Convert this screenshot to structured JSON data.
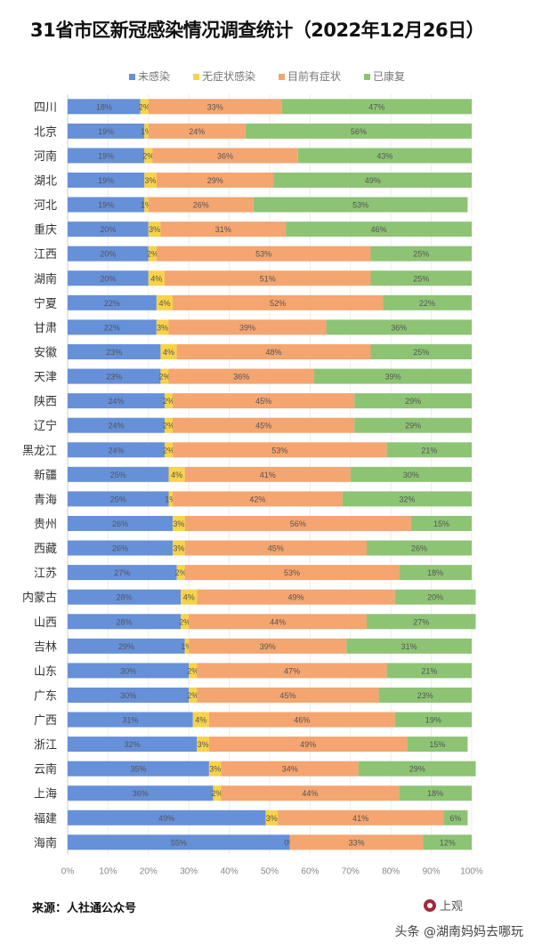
{
  "chart_data": {
    "type": "bar",
    "orientation": "horizontal",
    "stacked": true,
    "title": "31省市区新冠感染情况调查统计（2022年12月26日）",
    "categories": [
      "四川",
      "北京",
      "河南",
      "湖北",
      "河北",
      "重庆",
      "江西",
      "湖南",
      "宁夏",
      "甘肃",
      "安徽",
      "天津",
      "陕西",
      "辽宁",
      "黑龙江",
      "新疆",
      "青海",
      "贵州",
      "西藏",
      "江苏",
      "内蒙古",
      "山西",
      "吉林",
      "山东",
      "广东",
      "广西",
      "浙江",
      "云南",
      "上海",
      "福建",
      "海南"
    ],
    "series": [
      {
        "name": "未感染",
        "color": "#6690d8",
        "values": [
          18,
          19,
          19,
          19,
          19,
          20,
          20,
          20,
          22,
          22,
          23,
          23,
          24,
          24,
          24,
          25,
          25,
          26,
          26,
          27,
          28,
          28,
          29,
          30,
          30,
          31,
          32,
          35,
          36,
          49,
          55
        ]
      },
      {
        "name": "无症状感染",
        "color": "#f7d24a",
        "values": [
          2,
          1,
          2,
          3,
          1,
          3,
          2,
          4,
          4,
          3,
          4,
          2,
          2,
          2,
          2,
          4,
          1,
          3,
          3,
          2,
          4,
          2,
          1,
          2,
          2,
          4,
          3,
          3,
          2,
          3,
          0
        ]
      },
      {
        "name": "目前有症状",
        "color": "#f4a570",
        "values": [
          33,
          24,
          36,
          29,
          26,
          31,
          53,
          51,
          52,
          39,
          48,
          36,
          45,
          45,
          53,
          41,
          42,
          56,
          45,
          53,
          49,
          44,
          39,
          47,
          45,
          46,
          49,
          34,
          44,
          41,
          33
        ]
      },
      {
        "name": "已康复",
        "color": "#8dc474",
        "values": [
          47,
          56,
          43,
          49,
          53,
          46,
          25,
          25,
          22,
          36,
          25,
          39,
          29,
          29,
          21,
          30,
          32,
          15,
          26,
          18,
          20,
          27,
          31,
          21,
          23,
          19,
          15,
          29,
          18,
          6,
          12
        ]
      }
    ],
    "xlim": [
      0,
      100
    ],
    "x_ticks": [
      "0%",
      "10%",
      "20%",
      "30%",
      "40%",
      "50%",
      "60%",
      "70%",
      "80%",
      "90%",
      "100%"
    ],
    "grid": true,
    "legend_position": "top"
  },
  "footer": {
    "source": "来源：人社通公众号",
    "logo_text": "上观",
    "watermark": "头条 @湖南妈妈去哪玩"
  }
}
